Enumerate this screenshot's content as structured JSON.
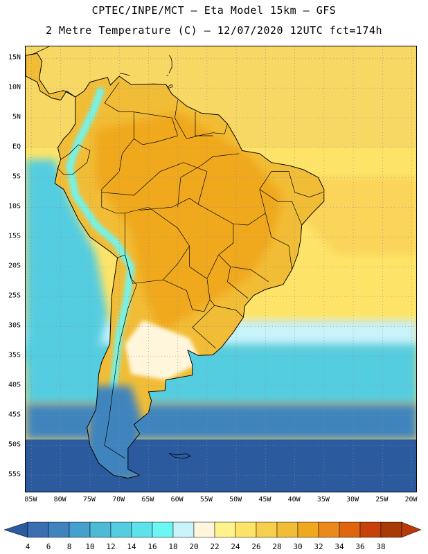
{
  "title_line1": "CPTEC/INPE/MCT –  Eta Model 15km – GFS",
  "title_line2": "2 Metre Temperature (C) – 12/07/2020 12UTC fct=174h",
  "map": {
    "lon_range": [
      -86,
      -19
    ],
    "lat_range": [
      17,
      -58
    ],
    "lat_ticks": [
      {
        "value": 15,
        "label": "15N"
      },
      {
        "value": 10,
        "label": "10N"
      },
      {
        "value": 5,
        "label": "5N"
      },
      {
        "value": 0,
        "label": "EQ"
      },
      {
        "value": -5,
        "label": "5S"
      },
      {
        "value": -10,
        "label": "10S"
      },
      {
        "value": -15,
        "label": "15S"
      },
      {
        "value": -20,
        "label": "20S"
      },
      {
        "value": -25,
        "label": "25S"
      },
      {
        "value": -30,
        "label": "30S"
      },
      {
        "value": -35,
        "label": "35S"
      },
      {
        "value": -40,
        "label": "40S"
      },
      {
        "value": -45,
        "label": "45S"
      },
      {
        "value": -50,
        "label": "50S"
      },
      {
        "value": -55,
        "label": "55S"
      }
    ],
    "lon_ticks": [
      {
        "value": -85,
        "label": "85W"
      },
      {
        "value": -80,
        "label": "80W"
      },
      {
        "value": -75,
        "label": "75W"
      },
      {
        "value": -70,
        "label": "70W"
      },
      {
        "value": -65,
        "label": "65W"
      },
      {
        "value": -60,
        "label": "60W"
      },
      {
        "value": -55,
        "label": "55W"
      },
      {
        "value": -50,
        "label": "50W"
      },
      {
        "value": -45,
        "label": "45W"
      },
      {
        "value": -40,
        "label": "40W"
      },
      {
        "value": -35,
        "label": "35W"
      },
      {
        "value": -30,
        "label": "30W"
      },
      {
        "value": -25,
        "label": "25W"
      },
      {
        "value": -20,
        "label": "20W"
      }
    ]
  },
  "colorbar": {
    "labels": [
      "4",
      "6",
      "8",
      "10",
      "12",
      "14",
      "16",
      "18",
      "20",
      "22",
      "24",
      "26",
      "28",
      "30",
      "32",
      "34",
      "36",
      "38"
    ],
    "colors": [
      "#3a6fb0",
      "#3f84be",
      "#44a0cc",
      "#4dbad6",
      "#55cde0",
      "#5ee2ea",
      "#6cf7f5",
      "#c8f3fb",
      "#fff6dc",
      "#fff28a",
      "#fde468",
      "#f7cf4c",
      "#f2bd36",
      "#f0a81e",
      "#ea8a1a",
      "#e0650f",
      "#c6420a",
      "#a83a08"
    ],
    "under_color": "#2c5a9e",
    "over_color": "#b83a08"
  },
  "colors": {
    "ocean_north": "#f7d865",
    "ocean_tropical_south": "#fde468",
    "ocean_cool": "#c8f3fb",
    "ocean_mid": "#55cde0",
    "ocean_cold": "#3f84be",
    "ocean_coldest": "#2c5a9e",
    "land_hot": "#f0a81e",
    "land_warm": "#f2bd36",
    "andes": "#6cf7f5",
    "patagonia": "#3f84be"
  }
}
